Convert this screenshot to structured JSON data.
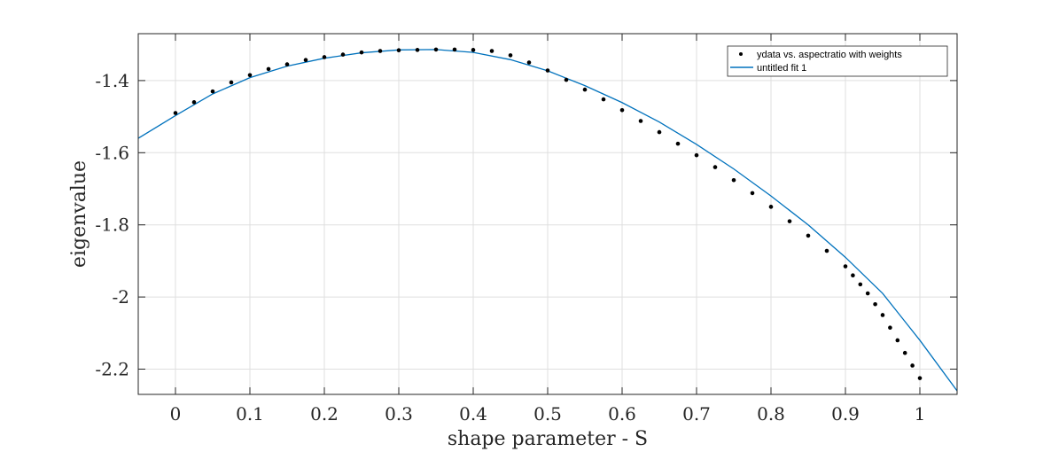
{
  "chart_data": {
    "type": "scatter",
    "xlabel": "shape parameter - S",
    "ylabel": "eigenvalue",
    "xlim": [
      -0.05,
      1.05
    ],
    "ylim": [
      -2.27,
      -1.27
    ],
    "xticks": [
      0,
      0.1,
      0.2,
      0.3,
      0.4,
      0.5,
      0.6,
      0.7,
      0.8,
      0.9,
      1
    ],
    "xtick_labels": [
      "0",
      "0.1",
      "0.2",
      "0.3",
      "0.4",
      "0.5",
      "0.6",
      "0.7",
      "0.8",
      "0.9",
      "1"
    ],
    "yticks": [
      -1.4,
      -1.6,
      -1.8,
      -2,
      -2.2
    ],
    "ytick_labels": [
      "-1.4",
      "-1.6",
      "-1.8",
      "-2",
      "-2.2"
    ],
    "grid": true,
    "legend_position": "top-right",
    "colors": {
      "data": "#000000",
      "fit": "#0072BD",
      "grid": "#dfdfdf",
      "axes": "#262626"
    },
    "series": [
      {
        "name": "ydata vs. aspectratio with weights",
        "kind": "scatter",
        "x": [
          0,
          0.025,
          0.05,
          0.075,
          0.1,
          0.125,
          0.15,
          0.175,
          0.2,
          0.225,
          0.25,
          0.275,
          0.3,
          0.325,
          0.35,
          0.375,
          0.4,
          0.425,
          0.45,
          0.475,
          0.5,
          0.525,
          0.55,
          0.575,
          0.6,
          0.625,
          0.65,
          0.675,
          0.7,
          0.725,
          0.75,
          0.775,
          0.8,
          0.825,
          0.85,
          0.875,
          0.9,
          0.91,
          0.92,
          0.93,
          0.94,
          0.95,
          0.96,
          0.97,
          0.98,
          0.99,
          1
        ],
        "y": [
          -1.49,
          -1.46,
          -1.43,
          -1.405,
          -1.385,
          -1.368,
          -1.355,
          -1.343,
          -1.335,
          -1.328,
          -1.322,
          -1.318,
          -1.316,
          -1.315,
          -1.314,
          -1.314,
          -1.315,
          -1.318,
          -1.33,
          -1.35,
          -1.372,
          -1.398,
          -1.425,
          -1.452,
          -1.482,
          -1.512,
          -1.543,
          -1.575,
          -1.607,
          -1.64,
          -1.676,
          -1.712,
          -1.75,
          -1.79,
          -1.83,
          -1.872,
          -1.915,
          -1.94,
          -1.965,
          -1.99,
          -2.02,
          -2.05,
          -2.085,
          -2.12,
          -2.155,
          -2.19,
          -2.225
        ]
      },
      {
        "name": "untitled fit 1",
        "kind": "line",
        "x": [
          -0.05,
          0,
          0.05,
          0.1,
          0.15,
          0.2,
          0.25,
          0.3,
          0.35,
          0.4,
          0.45,
          0.5,
          0.55,
          0.6,
          0.65,
          0.7,
          0.75,
          0.8,
          0.85,
          0.9,
          0.95,
          1,
          1.05
        ],
        "y": [
          -1.56,
          -1.497,
          -1.437,
          -1.392,
          -1.36,
          -1.338,
          -1.323,
          -1.315,
          -1.314,
          -1.322,
          -1.342,
          -1.373,
          -1.414,
          -1.461,
          -1.515,
          -1.577,
          -1.645,
          -1.72,
          -1.8,
          -1.89,
          -1.99,
          -2.12,
          -2.26
        ]
      }
    ]
  }
}
